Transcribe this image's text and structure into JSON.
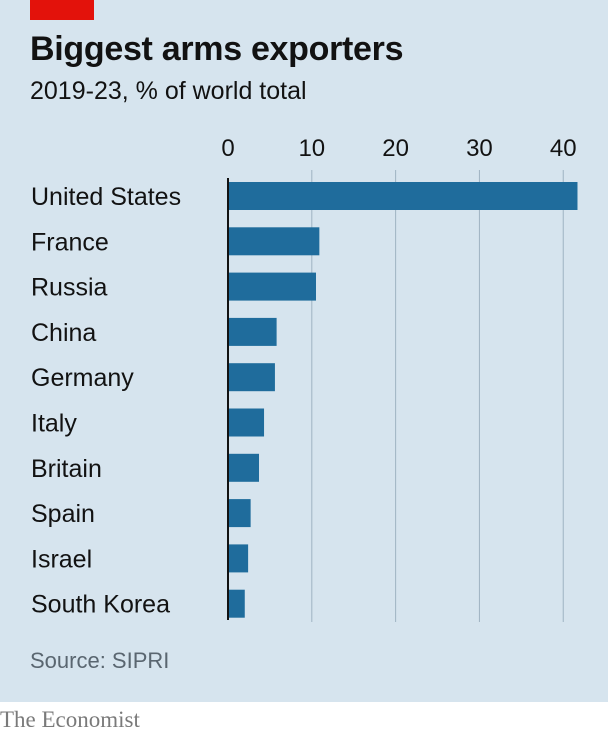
{
  "colors": {
    "background": "#d6e4ee",
    "bar": "#1f6c9c",
    "accent_tag": "#e3120b",
    "grid": "#9fb3c2"
  },
  "chart_data": {
    "type": "bar",
    "orientation": "horizontal",
    "title": "Biggest arms exporters",
    "subtitle": "2019-23, % of world total",
    "categories": [
      "United States",
      "France",
      "Russia",
      "China",
      "Germany",
      "Italy",
      "Britain",
      "Spain",
      "Israel",
      "South Korea"
    ],
    "values": [
      41.7,
      10.9,
      10.5,
      5.8,
      5.6,
      4.3,
      3.7,
      2.7,
      2.4,
      2.0
    ],
    "xlim": [
      0,
      42
    ],
    "xticks": [
      0,
      10,
      20,
      30,
      40
    ],
    "x_axis_position": "top",
    "grid": true,
    "source": "Source: SIPRI"
  },
  "footer": {
    "brand": "The Economist"
  }
}
